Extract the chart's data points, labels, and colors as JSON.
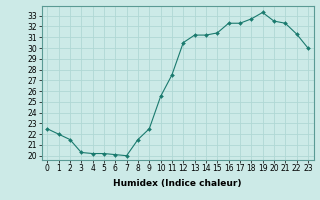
{
  "xlabel": "Humidex (Indice chaleur)",
  "x": [
    0,
    1,
    2,
    3,
    4,
    5,
    6,
    7,
    8,
    9,
    10,
    11,
    12,
    13,
    14,
    15,
    16,
    17,
    18,
    19,
    20,
    21,
    22,
    23
  ],
  "y": [
    22.5,
    22.0,
    21.5,
    20.3,
    20.2,
    20.2,
    20.1,
    20.0,
    21.5,
    22.5,
    25.5,
    27.5,
    30.5,
    31.2,
    31.2,
    31.4,
    32.3,
    32.3,
    32.7,
    33.3,
    32.5,
    32.3,
    31.3,
    30.0
  ],
  "line_color": "#1a7a6e",
  "marker": "D",
  "marker_size": 2.0,
  "bg_color": "#cceae7",
  "grid_color": "#b0d8d4",
  "ylim": [
    19.6,
    33.9
  ],
  "xlim": [
    -0.5,
    23.5
  ],
  "yticks": [
    20,
    21,
    22,
    23,
    24,
    25,
    26,
    27,
    28,
    29,
    30,
    31,
    32,
    33
  ],
  "xticks": [
    0,
    1,
    2,
    3,
    4,
    5,
    6,
    7,
    8,
    9,
    10,
    11,
    12,
    13,
    14,
    15,
    16,
    17,
    18,
    19,
    20,
    21,
    22,
    23
  ],
  "tick_fontsize": 5.5,
  "label_fontsize": 6.5
}
